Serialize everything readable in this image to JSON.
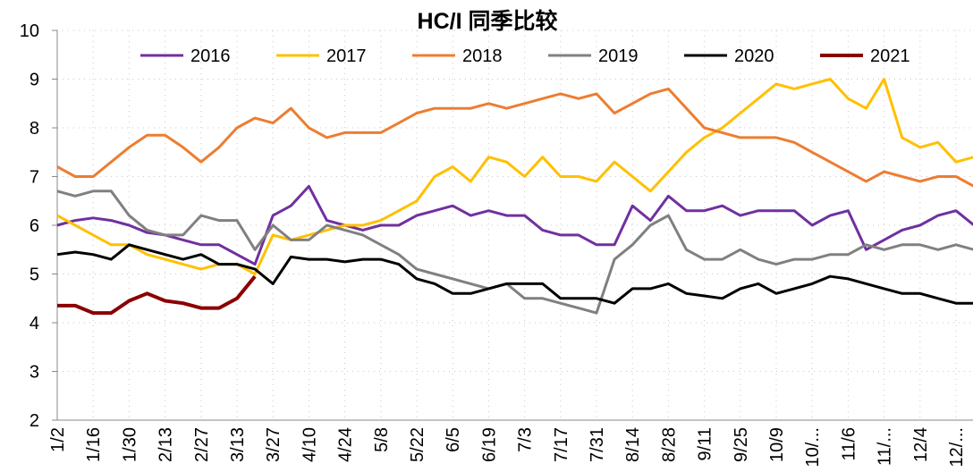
{
  "chart_data": {
    "type": "line",
    "title": "HC/I 同季比较",
    "categories": [
      "1/2",
      null,
      "1/16",
      null,
      "1/30",
      null,
      "2/13",
      null,
      "2/27",
      null,
      "3/13",
      null,
      "3/27",
      null,
      "4/10",
      null,
      "4/24",
      null,
      "5/8",
      null,
      "5/22",
      null,
      "6/5",
      null,
      "6/19",
      null,
      "7/3",
      null,
      "7/17",
      null,
      "7/31",
      null,
      "8/14",
      null,
      "8/28",
      null,
      "9/11",
      null,
      "9/25",
      null,
      "10/9",
      null,
      "10/...",
      null,
      "11/6",
      null,
      "11/...",
      null,
      "12/4",
      null,
      "12/...",
      null
    ],
    "series": [
      {
        "name": "2016",
        "color": "#7030a0",
        "values": [
          6.0,
          6.1,
          6.15,
          6.1,
          6.0,
          5.85,
          5.8,
          5.7,
          5.6,
          5.6,
          5.4,
          5.2,
          6.2,
          6.4,
          6.8,
          6.1,
          6.0,
          5.9,
          6.0,
          6.0,
          6.2,
          6.3,
          6.4,
          6.2,
          6.3,
          6.2,
          6.2,
          5.9,
          5.8,
          5.8,
          5.6,
          5.6,
          6.4,
          6.1,
          6.6,
          6.3,
          6.3,
          6.4,
          6.2,
          6.3,
          6.3,
          6.3,
          6.0,
          6.2,
          6.3,
          5.5,
          5.7,
          5.9,
          6.0,
          6.2,
          6.3,
          6.0
        ]
      },
      {
        "name": "2017",
        "color": "#ffc000",
        "values": [
          6.2,
          6.0,
          5.8,
          5.6,
          5.6,
          5.4,
          5.3,
          5.2,
          5.1,
          5.2,
          5.2,
          5.0,
          5.8,
          5.7,
          5.8,
          5.9,
          6.0,
          6.0,
          6.1,
          6.3,
          6.5,
          7.0,
          7.2,
          6.9,
          7.4,
          7.3,
          7.0,
          7.4,
          7.0,
          7.0,
          6.9,
          7.3,
          7.0,
          6.7,
          7.1,
          7.5,
          7.8,
          8.0,
          8.3,
          8.6,
          8.9,
          8.8,
          8.9,
          9.0,
          8.6,
          8.4,
          9.0,
          7.8,
          7.6,
          7.7,
          7.3,
          7.4
        ]
      },
      {
        "name": "2018",
        "color": "#ed7d31",
        "values": [
          7.2,
          7.0,
          7.0,
          7.3,
          7.6,
          7.85,
          7.85,
          7.6,
          7.3,
          7.6,
          8.0,
          8.2,
          8.1,
          8.4,
          8.0,
          7.8,
          7.9,
          7.9,
          7.9,
          8.1,
          8.3,
          8.4,
          8.4,
          8.4,
          8.5,
          8.4,
          8.5,
          8.6,
          8.7,
          8.6,
          8.7,
          8.3,
          8.5,
          8.7,
          8.8,
          8.4,
          8.0,
          7.9,
          7.8,
          7.8,
          7.8,
          7.7,
          7.5,
          7.3,
          7.1,
          6.9,
          7.1,
          7.0,
          6.9,
          7.0,
          7.0,
          6.8
        ]
      },
      {
        "name": "2019",
        "color": "#808080",
        "values": [
          6.7,
          6.6,
          6.7,
          6.7,
          6.2,
          5.9,
          5.8,
          5.8,
          6.2,
          6.1,
          6.1,
          5.5,
          6.0,
          5.7,
          5.7,
          6.0,
          5.9,
          5.8,
          5.6,
          5.4,
          5.1,
          5.0,
          4.9,
          4.8,
          4.7,
          4.8,
          4.5,
          4.5,
          4.4,
          4.3,
          4.2,
          5.3,
          5.6,
          6.0,
          6.2,
          5.5,
          5.3,
          5.3,
          5.5,
          5.3,
          5.2,
          5.3,
          5.3,
          5.4,
          5.4,
          5.6,
          5.5,
          5.6,
          5.6,
          5.5,
          5.6,
          5.5
        ]
      },
      {
        "name": "2020",
        "color": "#000000",
        "values": [
          5.4,
          5.45,
          5.4,
          5.3,
          5.6,
          5.5,
          5.4,
          5.3,
          5.4,
          5.2,
          5.2,
          5.1,
          4.8,
          5.35,
          5.3,
          5.3,
          5.25,
          5.3,
          5.3,
          5.2,
          4.9,
          4.8,
          4.6,
          4.6,
          4.7,
          4.8,
          4.8,
          4.8,
          4.5,
          4.5,
          4.5,
          4.4,
          4.7,
          4.7,
          4.8,
          4.6,
          4.55,
          4.5,
          4.7,
          4.8,
          4.6,
          4.7,
          4.8,
          4.95,
          4.9,
          4.8,
          4.7,
          4.6,
          4.6,
          4.5,
          4.4,
          4.4
        ]
      },
      {
        "name": "2021",
        "color": "#8b0000",
        "values": [
          4.35,
          4.35,
          4.2,
          4.2,
          4.45,
          4.6,
          4.45,
          4.4,
          4.3,
          4.3,
          4.5,
          4.95,
          null,
          null,
          null,
          null,
          null,
          null,
          null,
          null,
          null,
          null,
          null,
          null,
          null,
          null,
          null,
          null,
          null,
          null,
          null,
          null,
          null,
          null,
          null,
          null,
          null,
          null,
          null,
          null,
          null,
          null,
          null,
          null,
          null,
          null,
          null,
          null,
          null,
          null,
          null,
          null
        ]
      }
    ],
    "ylim": [
      2,
      10
    ],
    "yticks": [
      2,
      3,
      4,
      5,
      6,
      7,
      8,
      9,
      10
    ],
    "grid": true,
    "legend": "top"
  }
}
